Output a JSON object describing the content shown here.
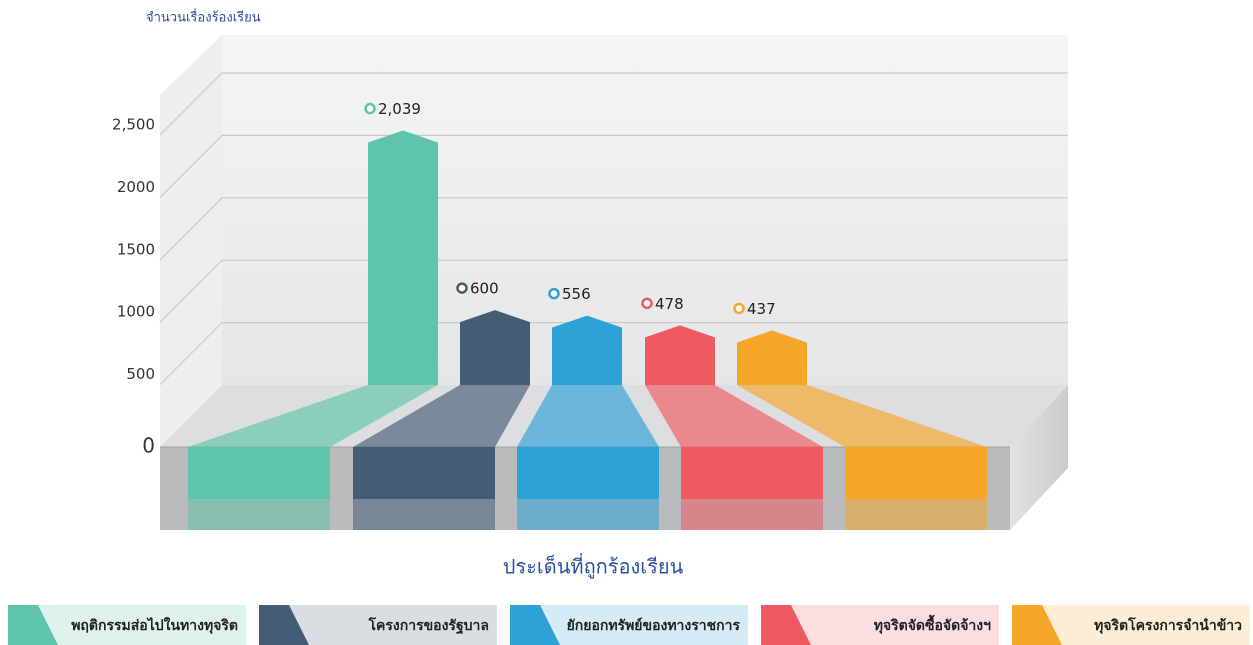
{
  "chart_data": {
    "type": "bar",
    "y_label": "จำนวนเรื่องร้องเรียน",
    "x_label": "ประเด็นที่ถูกร้องเรียน",
    "categories": [
      "พฤติกรรมส่อไปในทางทุจริต",
      "โครงการของรัฐบาล",
      "ยักยอกทรัพย์ของทางราชการ",
      "ทุจริตจัดซื้อจัดจ้างฯ",
      "ทุจริตโครงการจำนำข้าว"
    ],
    "values": [
      2039,
      600,
      556,
      478,
      437
    ],
    "value_labels": [
      "2,039",
      "600",
      "556",
      "478",
      "437"
    ],
    "colors": [
      "#5fc4ac",
      "#445c74",
      "#2ea2d6",
      "#ef5a62",
      "#f6a62a"
    ],
    "ylim": [
      0,
      3000
    ],
    "yticks": [
      0,
      500,
      1000,
      1500,
      2000,
      {
        "value": 2500,
        "label": "2,500"
      }
    ],
    "grid": true
  }
}
